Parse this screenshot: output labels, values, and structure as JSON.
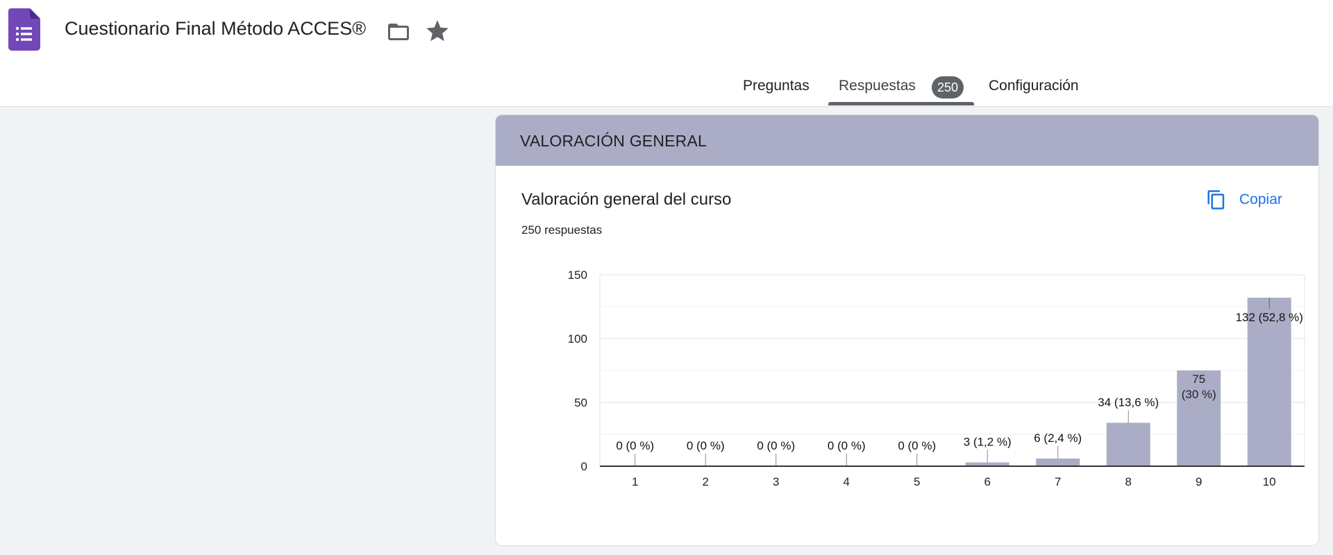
{
  "app": {
    "title": "Cuestionario Final Método ACCES®",
    "icon": "forms-list-icon",
    "accent": "#7248b9"
  },
  "tabs": [
    {
      "label": "Preguntas"
    },
    {
      "label": "Respuestas",
      "badge": "250",
      "active": true
    },
    {
      "label": "Configuración"
    }
  ],
  "section": {
    "title": "VALORACIÓN GENERAL",
    "color": "#abadc6"
  },
  "question": {
    "title": "Valoración general del curso",
    "responses": "250 respuestas",
    "copy_label": "Copiar"
  },
  "chart_data": {
    "type": "bar",
    "categories": [
      "1",
      "2",
      "3",
      "4",
      "5",
      "6",
      "7",
      "8",
      "9",
      "10"
    ],
    "values": [
      0,
      0,
      0,
      0,
      0,
      3,
      6,
      34,
      75,
      132
    ],
    "data_labels": [
      "0 (0 %)",
      "0 (0 %)",
      "0 (0 %)",
      "0 (0 %)",
      "0 (0 %)",
      "3 (1,2 %)",
      "6 (2,4 %)",
      "34 (13,6 %)",
      "75 (30 %)",
      "132 (52,8 %)"
    ],
    "yticks": [
      "0",
      "50",
      "100",
      "150"
    ],
    "ylim": [
      0,
      150
    ],
    "grid": true,
    "bar_color": "#abadc6"
  }
}
